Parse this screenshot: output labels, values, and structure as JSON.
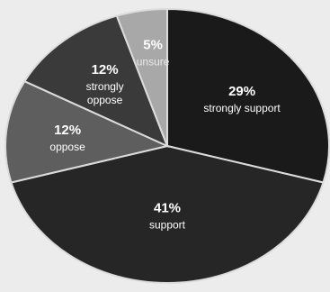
{
  "chart_data": {
    "type": "pie",
    "slices": [
      {
        "label": "strongly support",
        "label_lines": [
          "strongly support"
        ],
        "value": 29,
        "value_label": "29%",
        "color": "#1a1a1a"
      },
      {
        "label": "support",
        "label_lines": [
          "support"
        ],
        "value": 41,
        "value_label": "41%",
        "color": "#262626"
      },
      {
        "label": "oppose",
        "label_lines": [
          "oppose"
        ],
        "value": 12,
        "value_label": "12%",
        "color": "#5e5e5e"
      },
      {
        "label": "strongly oppose",
        "label_lines": [
          "strongly",
          "oppose"
        ],
        "value": 12,
        "value_label": "12%",
        "color": "#3a3a3a"
      },
      {
        "label": "unsure",
        "label_lines": [
          "unsure"
        ],
        "value": 5,
        "value_label": "5%",
        "color": "#a8a8a8"
      }
    ],
    "start_angle_deg": 0,
    "direction": "clockwise",
    "title": "",
    "legend": "none"
  }
}
